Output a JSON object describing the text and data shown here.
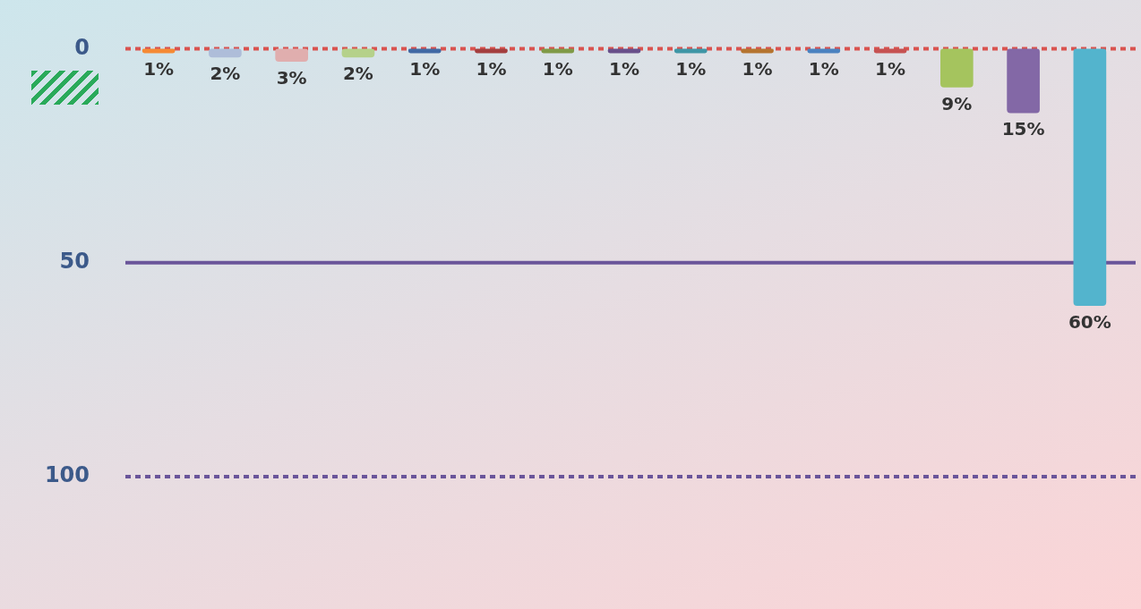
{
  "chart_data": {
    "type": "bar",
    "categories": [
      null,
      null,
      null,
      null,
      null,
      null,
      null,
      null,
      null,
      null,
      null,
      null,
      null,
      null,
      null
    ],
    "values": [
      1,
      2,
      3,
      2,
      1,
      1,
      1,
      1,
      1,
      1,
      1,
      1,
      9,
      15,
      60
    ],
    "value_labels": [
      "1%",
      "2%",
      "3%",
      "2%",
      "1%",
      "1%",
      "1%",
      "1%",
      "1%",
      "1%",
      "1%",
      "1%",
      "9%",
      "15%",
      "60%"
    ],
    "colors": [
      "#f58a35",
      "#aebdd9",
      "#e0aeae",
      "#b5d18a",
      "#4169a4",
      "#a43f3f",
      "#809a47",
      "#684f8a",
      "#3f96a6",
      "#b57430",
      "#4b82c0",
      "#c65252",
      "#a5c45e",
      "#8368a6",
      "#53b4cd"
    ],
    "ylim": [
      100,
      0
    ],
    "yticks": [
      0,
      50,
      100
    ],
    "tick_labels": "y",
    "grid": false,
    "legend": false,
    "ref_lines": [
      {
        "axis": "y",
        "value": 0,
        "color": "#d9534f",
        "line_style": "dashed"
      },
      {
        "axis": "y",
        "value": 50,
        "color": "#6a559a",
        "line_style": "solid"
      },
      {
        "axis": "y",
        "value": 100,
        "color": "#6a559a",
        "line_style": "dashed"
      }
    ]
  }
}
